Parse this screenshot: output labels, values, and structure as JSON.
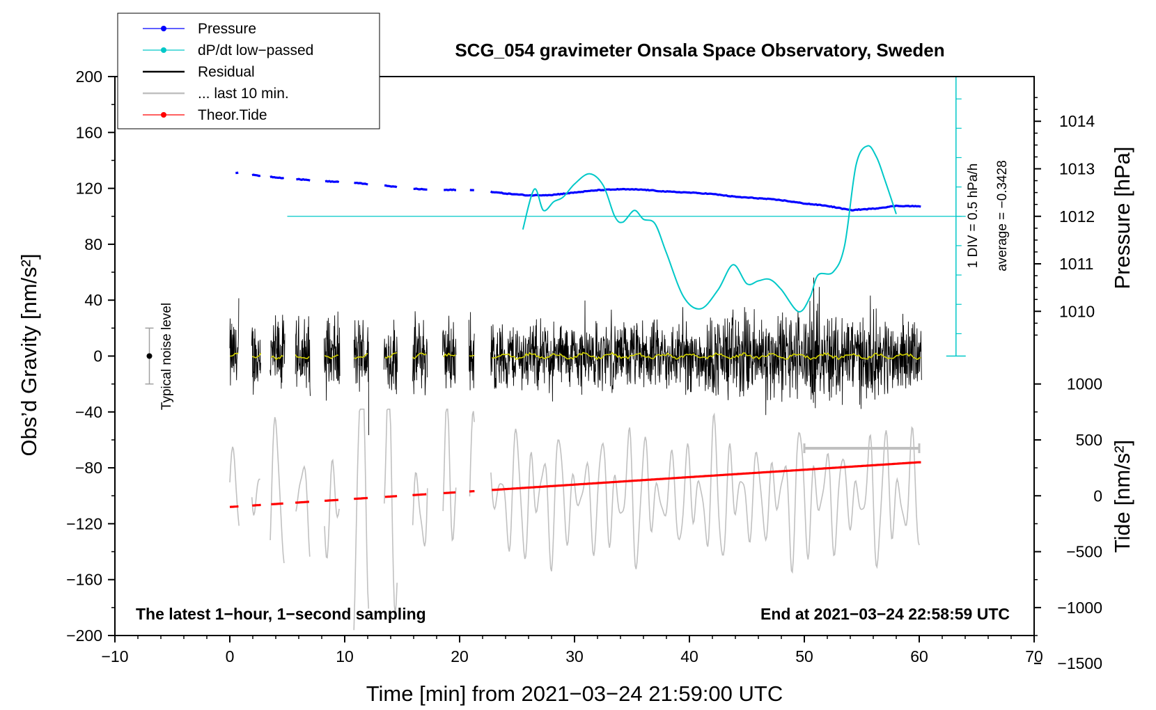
{
  "chart_data": {
    "type": "line",
    "title": "SCG_054 gravimeter Onsala Space Observatory, Sweden",
    "xlabel": "Time [min] from 2021−03−24 21:59:00 UTC",
    "ylabel_left": "Obs’d Gravity [nm/s²]",
    "ylabel_right_top": "Pressure [hPa]",
    "ylabel_right_bottom": "Tide [nm/s²]",
    "xlim": [
      -10,
      70
    ],
    "ylim": [
      -200,
      200
    ],
    "x_ticks": [
      -10,
      0,
      10,
      20,
      30,
      40,
      50,
      60,
      70
    ],
    "x_tick_labels": [
      "−10",
      "0",
      "10",
      "20",
      "30",
      "40",
      "50",
      "60",
      "70"
    ],
    "y_ticks": [
      -200,
      -160,
      -120,
      -80,
      -40,
      0,
      40,
      80,
      120,
      160,
      200
    ],
    "y_tick_labels": [
      "−200",
      "−160",
      "−120",
      "−80",
      "−40",
      "0",
      "40",
      "80",
      "120",
      "160",
      "200"
    ],
    "pressure_axis": {
      "ticks": [
        1010,
        1011,
        1012,
        1013,
        1014
      ],
      "tick_labels": [
        "1010",
        "1011",
        "1012",
        "1013",
        "1014"
      ],
      "gravity_at_1012": 100,
      "gravity_per_hPa": 34
    },
    "tide_axis": {
      "ticks": [
        -1500,
        -1000,
        -500,
        0,
        500,
        1000
      ],
      "tick_labels": [
        "−1500",
        "−1000",
        "−500",
        "0",
        "500",
        "1000"
      ],
      "gravity_at_0": -100,
      "gravity_per_unit": 0.08
    },
    "legend": [
      {
        "label": "Pressure",
        "color": "#0000ff",
        "marker": true
      },
      {
        "label": "dP/dt low−passed",
        "color": "#00c8c8",
        "marker": true
      },
      {
        "label": "Residual",
        "color": "#000000",
        "marker": false
      },
      {
        "label": "... last 10 min.",
        "color": "#c0c0c0",
        "marker": false
      },
      {
        "label": "Theor.Tide",
        "color": "#ff0000",
        "marker": true
      }
    ],
    "series": [
      {
        "name": "Pressure",
        "axis": "pressure_hPa",
        "color": "#0000ff",
        "x": [
          0.5,
          2,
          4,
          6,
          8,
          10,
          12,
          14,
          16,
          18,
          20,
          22,
          24,
          26,
          28,
          30,
          32,
          34,
          36,
          38,
          40,
          42,
          44,
          46,
          48,
          50,
          52,
          54,
          56,
          58,
          60
        ],
        "y": [
          1012.92,
          1012.87,
          1012.82,
          1012.78,
          1012.74,
          1012.72,
          1012.68,
          1012.63,
          1012.58,
          1012.55,
          1012.56,
          1012.54,
          1012.48,
          1012.44,
          1012.45,
          1012.5,
          1012.55,
          1012.57,
          1012.56,
          1012.52,
          1012.5,
          1012.47,
          1012.41,
          1012.38,
          1012.34,
          1012.27,
          1012.22,
          1012.13,
          1012.16,
          1012.22,
          1012.21
        ]
      },
      {
        "name": "dP/dt low-passed",
        "axis": "dpdt_div",
        "color": "#00c8c8",
        "x": [
          25.5,
          26.5,
          27.3,
          28.2,
          29,
          30,
          31.3,
          32.5,
          33.5,
          34.2,
          35.2,
          36,
          37,
          38,
          39.5,
          41,
          42.5,
          43.8,
          45,
          46,
          47,
          48,
          49.5,
          50.5,
          51.2,
          52.5,
          53.5,
          54.5,
          55.5,
          56.3,
          57,
          58
        ],
        "y": [
          -0.9,
          1.85,
          0.4,
          1.0,
          1.3,
          2.2,
          2.9,
          2.1,
          0.0,
          -0.4,
          0.4,
          -0.2,
          -0.5,
          -2.5,
          -5.5,
          -6.3,
          -5.0,
          -3.3,
          -4.6,
          -4.4,
          -4.3,
          -5.0,
          -6.5,
          -5.5,
          -4.0,
          -3.8,
          -2.0,
          3.5,
          4.8,
          4.0,
          2.5,
          0.15
        ]
      },
      {
        "name": "Theor.Tide",
        "axis": "tide_nms2",
        "color": "#ff0000",
        "x": [
          0,
          10,
          20,
          30,
          40,
          50,
          60
        ],
        "y": [
          -100,
          -33,
          33,
          100,
          167,
          233,
          300
        ]
      }
    ],
    "dpdt_scale": {
      "label": "1 DIV = 0.5 hPa/h",
      "average_label": "average = −0.3428",
      "zero_gravity": 100,
      "gravity_per_div": 10.5,
      "x_min": 5
    },
    "residual_gaps": [
      [
        0.8,
        1.9
      ],
      [
        2.7,
        3.5
      ],
      [
        4.8,
        5.7
      ],
      [
        7.0,
        8.2
      ],
      [
        9.6,
        10.8
      ],
      [
        12.1,
        13.4
      ],
      [
        14.6,
        15.9
      ],
      [
        17.2,
        18.5
      ],
      [
        19.7,
        20.8
      ],
      [
        21.3,
        22.7
      ]
    ],
    "residual_amplitude_nms2": 35,
    "noise_bar": {
      "x": -7,
      "center": 0,
      "half_range": 20,
      "label": "Typical noise level"
    },
    "last10_bar": {
      "x_start": 50,
      "x_end": 60,
      "y": -66
    },
    "notes": {
      "left": "The latest 1−hour, 1−second sampling",
      "right": "End at 2021−03−24 22:58:59 UTC"
    }
  }
}
